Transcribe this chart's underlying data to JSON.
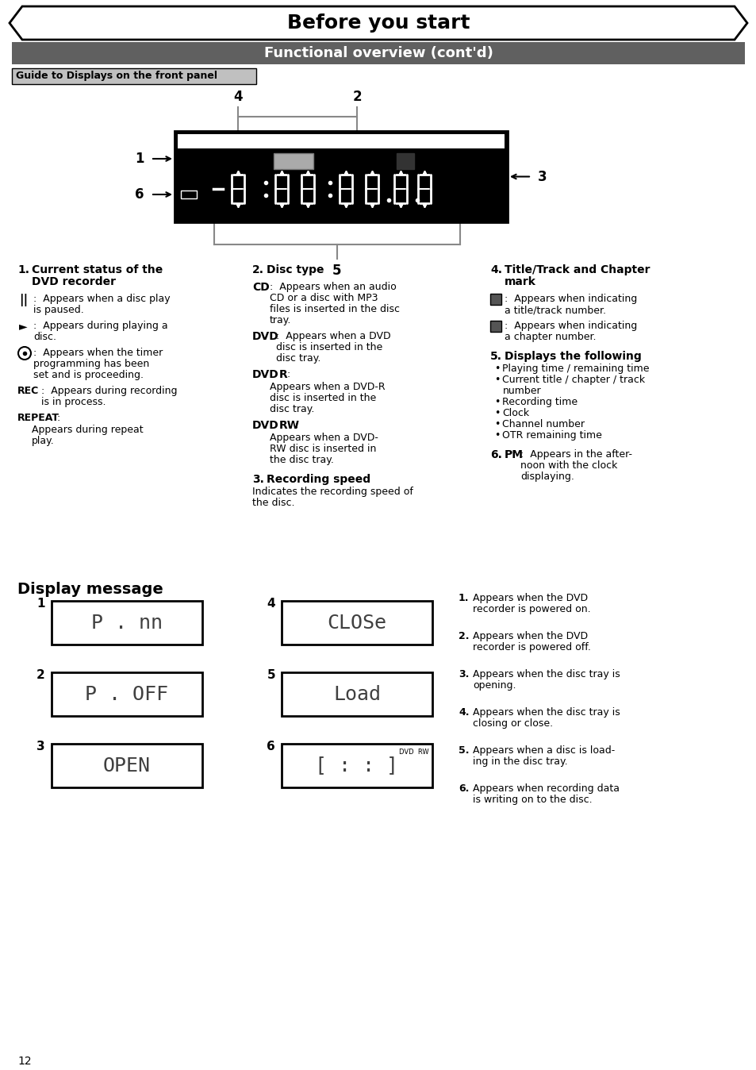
{
  "title": "Before you start",
  "subtitle": "Functional overview (cont'd)",
  "section_label": "Guide to Displays on the front panel",
  "bg_color": "#ffffff",
  "subtitle_bg": "#606060",
  "section_bg": "#c0c0c0",
  "page_number": "12"
}
